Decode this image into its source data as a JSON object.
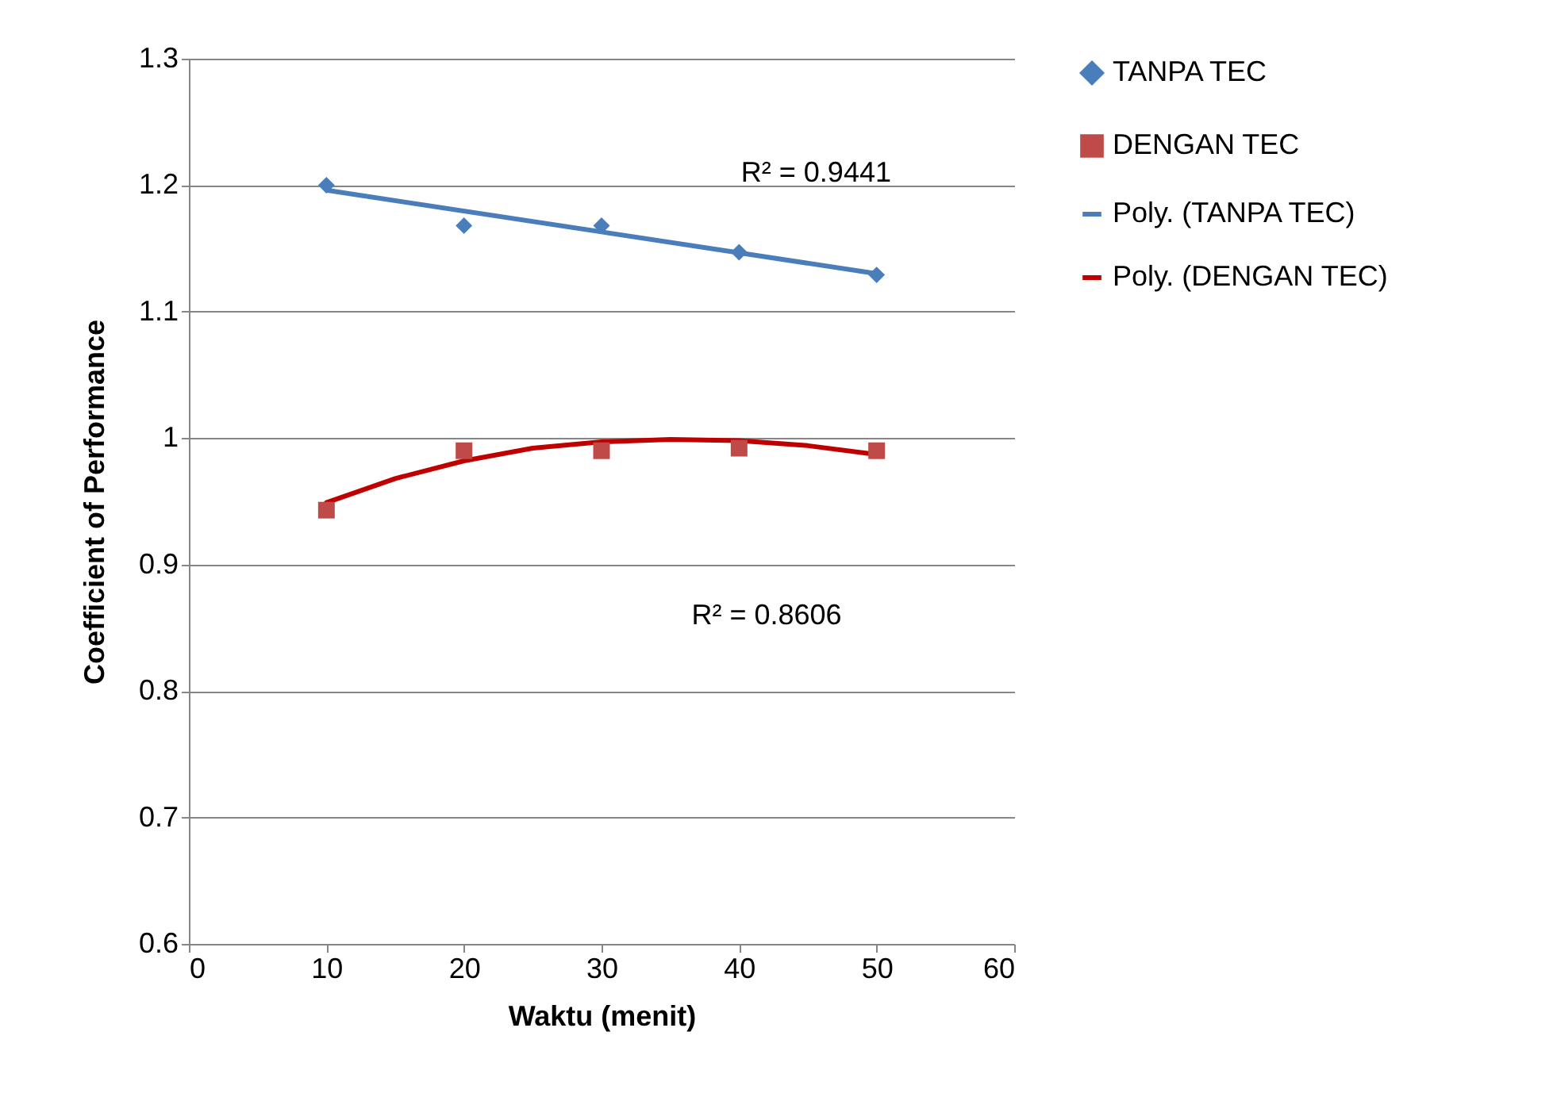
{
  "chart_data": {
    "type": "scatter",
    "xlabel": "Waktu (menit)",
    "ylabel": "Coefficient of Performance",
    "xlim": [
      0,
      60
    ],
    "xticks": [
      0,
      10,
      20,
      30,
      40,
      50,
      60
    ],
    "ylim": [
      0.6,
      1.3
    ],
    "yticks": [
      0.6,
      0.7,
      0.8,
      0.9,
      1,
      1.1,
      1.2,
      1.3
    ],
    "grid": "y",
    "legend": "right",
    "series": [
      {
        "name": "TANPA TEC",
        "type": "scatter",
        "marker": "diamond",
        "color": "#4a7ebb",
        "x": [
          10,
          20,
          30,
          40,
          50
        ],
        "values": [
          1.2,
          1.168,
          1.168,
          1.147,
          1.129
        ]
      },
      {
        "name": "DENGAN TEC",
        "type": "scatter",
        "marker": "square",
        "color": "#be4b48",
        "x": [
          10,
          20,
          30,
          40,
          50
        ],
        "values": [
          0.943,
          0.99,
          0.99,
          0.992,
          0.99
        ]
      },
      {
        "name": "Poly. (TANPA TEC)",
        "type": "line",
        "color": "#4a7ebb",
        "x": [
          10,
          50
        ],
        "values": [
          1.196,
          1.13
        ]
      },
      {
        "name": "Poly. (DENGAN TEC)",
        "type": "line",
        "color": "#c00000",
        "x": [
          10,
          15,
          20,
          25,
          30,
          35,
          40,
          45,
          50
        ],
        "values": [
          0.949,
          0.968,
          0.982,
          0.992,
          0.997,
          0.999,
          0.998,
          0.994,
          0.987
        ]
      }
    ],
    "annotations": [
      "R² = 0.9441",
      "R² = 0.8606"
    ]
  }
}
